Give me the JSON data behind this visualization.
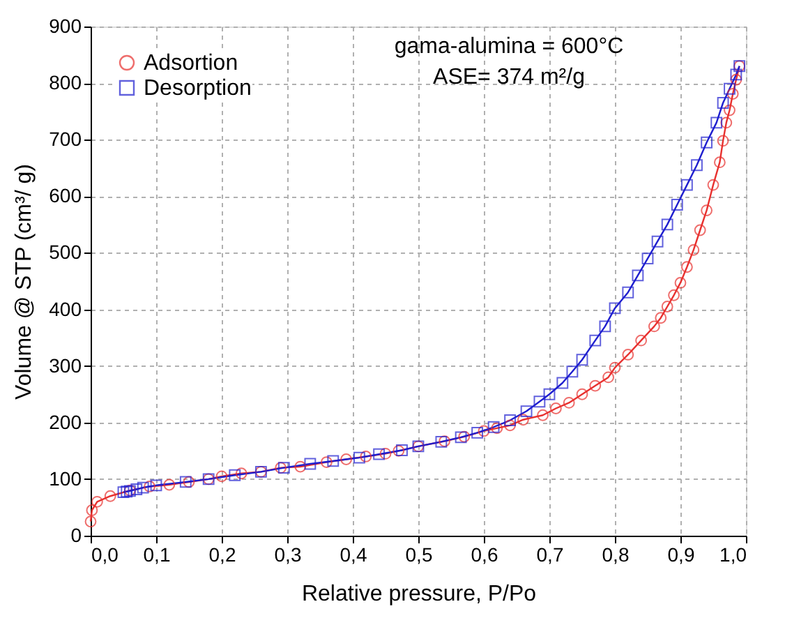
{
  "chart_data": {
    "type": "line",
    "xlabel": "Relative pressure, P/Po",
    "ylabel": "Volume @ STP (cm³/ g)",
    "annotations": [
      "gama-alumina = 600°C",
      "ASE= 374 m²/g"
    ],
    "xlim": [
      0,
      1
    ],
    "ylim": [
      0,
      900
    ],
    "xticks": [
      {
        "value": 0,
        "label": "0,0"
      },
      {
        "value": 0.1,
        "label": "0,1"
      },
      {
        "value": 0.2,
        "label": "0,2"
      },
      {
        "value": 0.3,
        "label": "0,3"
      },
      {
        "value": 0.4,
        "label": "0,4"
      },
      {
        "value": 0.5,
        "label": "0,5"
      },
      {
        "value": 0.6,
        "label": "0,6"
      },
      {
        "value": 0.7,
        "label": "0,7"
      },
      {
        "value": 0.8,
        "label": "0,8"
      },
      {
        "value": 0.9,
        "label": "0,9"
      },
      {
        "value": 1,
        "label": "1,0"
      }
    ],
    "yticks": [
      0,
      100,
      200,
      300,
      400,
      500,
      600,
      700,
      800,
      900
    ],
    "grid": true,
    "legend": "top left",
    "line_style": "solid",
    "series": [
      {
        "name": "Adsortion",
        "color": "#e8312f",
        "marker": "circle",
        "x": [
          0.0,
          0.002,
          0.01,
          0.03,
          0.06,
          0.09,
          0.12,
          0.15,
          0.18,
          0.2,
          0.23,
          0.26,
          0.29,
          0.32,
          0.36,
          0.39,
          0.42,
          0.45,
          0.47,
          0.5,
          0.54,
          0.57,
          0.6,
          0.62,
          0.64,
          0.66,
          0.69,
          0.71,
          0.73,
          0.75,
          0.77,
          0.79,
          0.8,
          0.82,
          0.84,
          0.86,
          0.87,
          0.88,
          0.89,
          0.9,
          0.91,
          0.92,
          0.93,
          0.94,
          0.95,
          0.96,
          0.965,
          0.97,
          0.975,
          0.98,
          0.985,
          0.99
        ],
        "values": [
          25,
          45,
          60,
          70,
          80,
          87,
          90,
          95,
          100,
          105,
          110,
          113,
          120,
          122,
          130,
          135,
          140,
          145,
          150,
          158,
          167,
          175,
          185,
          190,
          195,
          205,
          213,
          225,
          235,
          250,
          265,
          280,
          297,
          320,
          345,
          370,
          385,
          405,
          425,
          447,
          475,
          505,
          540,
          575,
          620,
          660,
          698,
          730,
          752,
          781,
          806,
          830
        ]
      },
      {
        "name": "Desorption",
        "color": "#1f1fcf",
        "marker": "square",
        "x": [
          0.05,
          0.055,
          0.06,
          0.07,
          0.08,
          0.1,
          0.145,
          0.18,
          0.22,
          0.26,
          0.295,
          0.335,
          0.37,
          0.41,
          0.44,
          0.475,
          0.5,
          0.535,
          0.565,
          0.59,
          0.615,
          0.64,
          0.665,
          0.685,
          0.7,
          0.72,
          0.735,
          0.75,
          0.77,
          0.785,
          0.8,
          0.82,
          0.835,
          0.85,
          0.865,
          0.88,
          0.895,
          0.91,
          0.925,
          0.94,
          0.955,
          0.965,
          0.975,
          0.985,
          0.99
        ],
        "values": [
          77,
          78,
          79,
          82,
          85,
          89,
          95,
          100,
          107,
          113,
          120,
          127,
          132,
          138,
          144,
          151,
          158,
          166,
          174,
          182,
          192,
          204,
          220,
          237,
          250,
          270,
          290,
          311,
          345,
          370,
          402,
          430,
          460,
          490,
          520,
          550,
          585,
          620,
          655,
          695,
          730,
          765,
          790,
          815,
          830
        ]
      }
    ]
  }
}
